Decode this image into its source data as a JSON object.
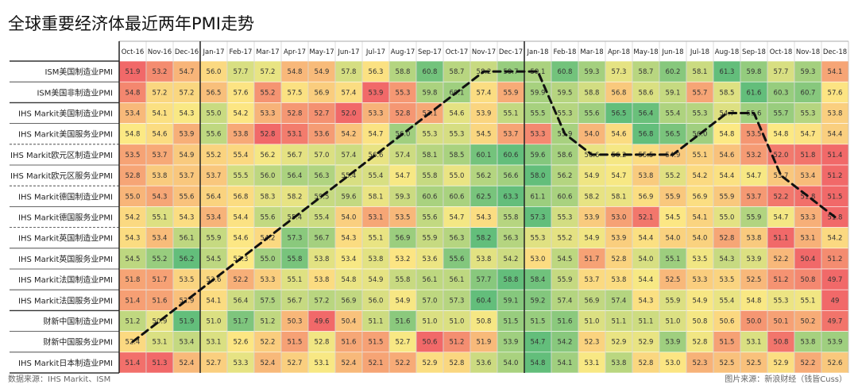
{
  "title": "全球重要经济体最近两年PMI走势",
  "source_left": "数据来源：IHS Markit、ISM",
  "source_right": "图片来源：新浪财经（钱皆Cuss）",
  "chart_data": {
    "type": "heatmap",
    "columns": [
      "Oct-16",
      "Nov-16",
      "Dec-16",
      "Jan-17",
      "Feb-17",
      "Mar-17",
      "Apr-17",
      "May-17",
      "Jun-17",
      "Jul-17",
      "Aug-17",
      "Sep-17",
      "Oct-17",
      "Nov-17",
      "Dec-17",
      "Jan-18",
      "Feb-18",
      "Mar-18",
      "Apr-18",
      "May-18",
      "Jun-18",
      "Jul-18",
      "Aug-18",
      "Sep-18",
      "Oct-18",
      "Nov-18",
      "Dec-18"
    ],
    "rows": [
      {
        "label": "ISM美国制造业PMI",
        "values": [
          51.9,
          53.2,
          54.7,
          56.0,
          57.7,
          57.2,
          54.8,
          54.9,
          57.8,
          56.3,
          58.8,
          60.8,
          58.7,
          58.2,
          59.7,
          59.1,
          60.8,
          59.3,
          57.3,
          58.7,
          60.2,
          58.1,
          61.3,
          59.8,
          57.7,
          59.3,
          54.1
        ]
      },
      {
        "label": "ISM美国非制造业PMI",
        "values": [
          54.8,
          57.2,
          57.2,
          56.5,
          57.6,
          55.2,
          57.5,
          56.9,
          57.4,
          53.9,
          55.3,
          59.8,
          60.1,
          57.4,
          55.9,
          59.9,
          59.5,
          58.8,
          56.8,
          58.6,
          59.1,
          55.7,
          58.5,
          61.6,
          60.3,
          60.7,
          57.6
        ]
      },
      {
        "label": "IHS Markit美国制造业PMI",
        "values": [
          53.4,
          54.1,
          54.3,
          55.0,
          54.2,
          53.3,
          52.8,
          52.7,
          52.0,
          53.3,
          52.8,
          53.1,
          54.6,
          53.9,
          55.1,
          55.5,
          55.3,
          55.6,
          56.5,
          56.4,
          55.4,
          55.3,
          54.7,
          55.6,
          55.7,
          55.3,
          53.8
        ]
      },
      {
        "label": "IHS Markit美国服务业PMI",
        "values": [
          54.8,
          54.6,
          53.9,
          55.6,
          53.8,
          52.8,
          53.1,
          53.6,
          54.2,
          54.7,
          56.0,
          55.3,
          55.3,
          54.5,
          53.7,
          53.3,
          55.9,
          54.0,
          54.6,
          56.8,
          56.5,
          56.0,
          54.8,
          53.5,
          54.8,
          54.7,
          54.4
        ]
      },
      {
        "label": "IHS Markit欧元区制造业PMI",
        "values": [
          53.5,
          53.7,
          54.9,
          55.2,
          55.4,
          56.2,
          56.7,
          57.0,
          57.4,
          56.6,
          57.4,
          58.1,
          58.5,
          60.1,
          60.6,
          59.6,
          58.6,
          56.6,
          56.2,
          55.5,
          54.9,
          55.1,
          54.6,
          53.2,
          52.0,
          51.8,
          51.4
        ]
      },
      {
        "label": "IHS Markit欧元区服务业PMI",
        "values": [
          52.8,
          53.8,
          53.7,
          53.7,
          55.5,
          56.0,
          56.4,
          56.3,
          55.4,
          55.4,
          54.7,
          55.8,
          55.0,
          56.2,
          56.6,
          58.0,
          56.2,
          54.9,
          54.7,
          53.8,
          55.2,
          54.2,
          54.4,
          54.7,
          53.7,
          53.4,
          51.2
        ]
      },
      {
        "label": "IHS Markit德国制造业PMI",
        "values": [
          55.0,
          54.3,
          55.6,
          56.4,
          56.8,
          58.3,
          58.2,
          59.5,
          59.6,
          58.1,
          59.3,
          60.6,
          60.6,
          62.5,
          63.3,
          61.1,
          60.6,
          58.2,
          58.1,
          56.9,
          55.9,
          56.9,
          55.9,
          53.7,
          52.2,
          51.8,
          51.5
        ]
      },
      {
        "label": "IHS Markit德国服务业PMI",
        "values": [
          54.2,
          55.1,
          54.3,
          53.4,
          54.4,
          55.6,
          55.4,
          55.4,
          54.0,
          53.1,
          53.5,
          55.6,
          54.7,
          54.3,
          55.8,
          57.3,
          55.3,
          53.9,
          53.0,
          52.1,
          54.5,
          54.1,
          55.0,
          55.9,
          54.7,
          53.3,
          51.8
        ]
      },
      {
        "label": "IHS Markit英国制造业PMI",
        "values": [
          54.3,
          53.4,
          56.1,
          55.9,
          54.6,
          54.2,
          57.3,
          56.7,
          54.3,
          55.1,
          56.9,
          55.9,
          56.3,
          58.2,
          56.3,
          55.3,
          55.2,
          54.9,
          53.9,
          54.4,
          54.0,
          54.0,
          52.8,
          53.8,
          51.1,
          53.1,
          54.2
        ]
      },
      {
        "label": "IHS Markit英国服务业PMI",
        "values": [
          54.5,
          55.2,
          56.2,
          54.5,
          53.3,
          55.0,
          55.8,
          53.8,
          53.4,
          53.8,
          53.2,
          53.6,
          55.6,
          53.8,
          54.2,
          53.0,
          54.5,
          51.7,
          52.8,
          54.0,
          55.1,
          53.5,
          54.3,
          53.9,
          52.2,
          50.4,
          51.2
        ]
      },
      {
        "label": "IHS Markit法国制造业PMI",
        "values": [
          51.8,
          51.7,
          53.5,
          53.6,
          52.2,
          53.3,
          55.1,
          53.8,
          54.8,
          54.9,
          55.8,
          56.1,
          56.1,
          57.7,
          58.8,
          58.4,
          55.9,
          53.7,
          53.8,
          54.4,
          52.5,
          53.3,
          53.5,
          52.5,
          51.2,
          50.8,
          49.7
        ]
      },
      {
        "label": "IHS Markit法国服务业PMI",
        "values": [
          51.4,
          51.6,
          52.9,
          54.1,
          56.4,
          57.5,
          56.7,
          57.2,
          56.9,
          56.0,
          54.9,
          57.0,
          57.3,
          60.4,
          59.1,
          59.2,
          57.4,
          56.9,
          57.4,
          54.3,
          55.9,
          54.9,
          55.4,
          54.8,
          55.3,
          55.1,
          49.0
        ]
      },
      {
        "label": "财新中国制造业PMI",
        "values": [
          51.2,
          50.9,
          51.9,
          51.0,
          51.7,
          51.2,
          50.3,
          49.6,
          50.4,
          51.1,
          51.6,
          51.0,
          51.0,
          50.8,
          51.5,
          51.5,
          51.6,
          51.0,
          51.1,
          51.1,
          51.0,
          50.8,
          50.6,
          50.0,
          50.1,
          50.2,
          49.7
        ]
      },
      {
        "label": "财新中国服务业PMI",
        "values": [
          52.4,
          53.1,
          53.4,
          53.1,
          52.6,
          52.2,
          51.5,
          52.8,
          51.6,
          51.5,
          52.7,
          50.6,
          51.2,
          51.9,
          53.9,
          54.7,
          54.2,
          52.3,
          52.9,
          52.9,
          53.9,
          52.8,
          51.5,
          53.1,
          50.8,
          53.8,
          53.9
        ]
      },
      {
        "label": "IHS Markit日本制造业PMI",
        "values": [
          51.4,
          51.3,
          52.4,
          52.7,
          53.3,
          52.4,
          52.7,
          53.1,
          52.4,
          52.1,
          52.2,
          52.9,
          52.8,
          53.6,
          54.0,
          54.8,
          54.1,
          53.1,
          53.8,
          52.8,
          53.0,
          52.3,
          52.5,
          52.5,
          52.9,
          52.2,
          52.6
        ]
      }
    ],
    "trend_line": {
      "row": [
        13,
        12,
        11,
        10,
        9,
        8,
        7,
        6,
        5,
        4,
        3,
        2,
        1,
        0,
        0,
        0,
        3,
        4,
        4,
        4,
        4,
        3,
        2,
        2,
        5,
        6,
        7
      ],
      "note": "decorative"
    }
  }
}
